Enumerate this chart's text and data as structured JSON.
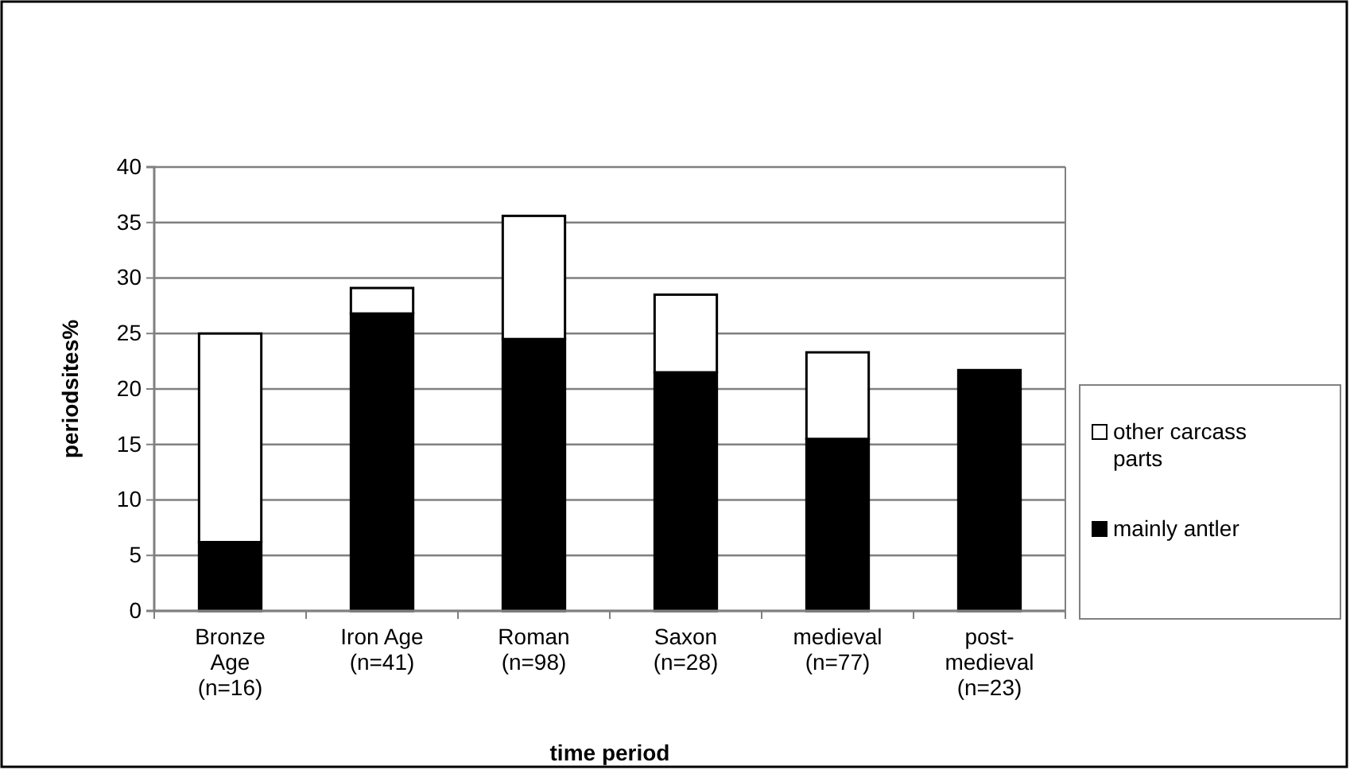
{
  "chart_data": {
    "type": "bar",
    "stacked": true,
    "xlabel": "time period",
    "ylabel": "periodsites%",
    "categories": [
      "Bronze Age (n=16)",
      "Iron Age (n=41)",
      "Roman (n=98)",
      "Saxon (n=28)",
      "medieval (n=77)",
      "post-medieval (n=23)"
    ],
    "series": [
      {
        "name": "mainly antler",
        "color": "#000000",
        "values": [
          6.2,
          26.8,
          24.5,
          21.5,
          15.5,
          21.7
        ]
      },
      {
        "name": "other carcass parts",
        "color": "#ffffff",
        "values": [
          18.8,
          2.3,
          11.1,
          7.0,
          7.8,
          0
        ]
      }
    ],
    "ylim": [
      0,
      40
    ],
    "yticks": [
      0,
      5,
      10,
      15,
      20,
      25,
      30,
      35,
      40
    ],
    "grid": "y",
    "legend": "right"
  }
}
